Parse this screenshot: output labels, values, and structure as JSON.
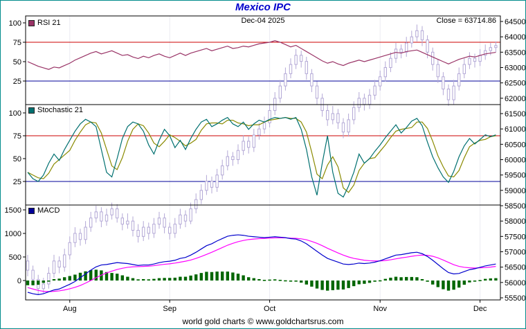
{
  "title": "Mexico IPC",
  "header": {
    "date_label": "Dec-04 2025",
    "close_label": "Close = 63714.86"
  },
  "footer": "world gold charts © www.goldchartsrus.com",
  "panels": [
    {
      "legend": "RSI 21",
      "swatch_color": "#993366"
    },
    {
      "legend": "Stochastic 21",
      "swatch_color": "#007070"
    },
    {
      "legend": "MACD",
      "swatch_color": "#000099"
    }
  ],
  "colors": {
    "title": "#0000cc",
    "frame_border": "#008b8b",
    "plot_border": "#000000",
    "month_grid": "#ebebf2",
    "candle": "#b3a8d6",
    "rsi_line": "#993366",
    "stoch_k_line": "#007070",
    "stoch_d_line": "#8a8a00",
    "macd_line": "#0000cc",
    "signal_line": "#ff00ff",
    "histogram": "#006600",
    "threshold_upper": "#cc0000",
    "threshold_lower": "#000099"
  },
  "chart_data": {
    "type": "candlestick_with_indicators",
    "title": "Mexico IPC",
    "annotation_date": "Dec-04 2025",
    "close_value": 63714.86,
    "x_axis": {
      "labels": [
        "Aug",
        "Sep",
        "Oct",
        "Nov",
        "Dec"
      ],
      "tick_indices": [
        8,
        27,
        46,
        67,
        86
      ]
    },
    "price_axis": {
      "min": 55500,
      "max": 64500,
      "step": 500,
      "ticks": [
        64500,
        64000,
        63500,
        63000,
        62500,
        62000,
        61500,
        61000,
        60500,
        60000,
        59500,
        59000,
        58500,
        58000,
        57500,
        57000,
        56500,
        56000,
        55500
      ]
    },
    "rsi_axis_ticks": [
      100,
      75,
      50,
      25
    ],
    "stoch_axis_ticks": [
      100,
      75,
      50,
      25
    ],
    "macd_axis_ticks": [
      1500,
      1000,
      500,
      0
    ],
    "thresholds": {
      "upper": 75,
      "lower": 25
    },
    "candles": [
      [
        56700,
        56900,
        56200,
        56400
      ],
      [
        56400,
        56550,
        55900,
        56100
      ],
      [
        56100,
        56250,
        55600,
        55800
      ],
      [
        55800,
        56150,
        55650,
        55950
      ],
      [
        55950,
        56500,
        55800,
        56300
      ],
      [
        56300,
        56900,
        56150,
        56700
      ],
      [
        56700,
        56850,
        56300,
        56500
      ],
      [
        56500,
        57100,
        56350,
        56900
      ],
      [
        56900,
        57500,
        56750,
        57300
      ],
      [
        57300,
        57800,
        57150,
        57600
      ],
      [
        57600,
        57750,
        57200,
        57400
      ],
      [
        57400,
        58000,
        57250,
        57800
      ],
      [
        57800,
        58300,
        57650,
        58100
      ],
      [
        58100,
        58500,
        57950,
        58300
      ],
      [
        58300,
        58450,
        57800,
        58000
      ],
      [
        58000,
        58400,
        57850,
        58200
      ],
      [
        58200,
        58600,
        58050,
        58400
      ],
      [
        58400,
        58550,
        57950,
        58100
      ],
      [
        58100,
        58250,
        57700,
        57900
      ],
      [
        57900,
        58250,
        57750,
        58000
      ],
      [
        58000,
        58150,
        57500,
        57700
      ],
      [
        57700,
        57900,
        57300,
        57500
      ],
      [
        57500,
        58000,
        57350,
        57800
      ],
      [
        57800,
        57950,
        57400,
        57600
      ],
      [
        57600,
        58100,
        57450,
        57900
      ],
      [
        57900,
        58300,
        57750,
        58100
      ],
      [
        58100,
        58250,
        57600,
        57800
      ],
      [
        57800,
        57950,
        57400,
        57600
      ],
      [
        57600,
        58100,
        57450,
        57900
      ],
      [
        57900,
        58400,
        57750,
        58200
      ],
      [
        58200,
        58350,
        57800,
        58000
      ],
      [
        58000,
        58600,
        57900,
        58400
      ],
      [
        58400,
        58900,
        58250,
        58700
      ],
      [
        58700,
        59200,
        58550,
        59000
      ],
      [
        59000,
        59500,
        58850,
        59300
      ],
      [
        59300,
        59450,
        58900,
        59100
      ],
      [
        59100,
        59700,
        58950,
        59500
      ],
      [
        59500,
        60000,
        59350,
        59800
      ],
      [
        59800,
        60300,
        59650,
        60100
      ],
      [
        60100,
        60250,
        59800,
        60000
      ],
      [
        60000,
        60500,
        59850,
        60300
      ],
      [
        60300,
        60800,
        60150,
        60600
      ],
      [
        60600,
        60750,
        60200,
        60400
      ],
      [
        60400,
        61000,
        60250,
        60800
      ],
      [
        60800,
        61200,
        60650,
        61000
      ],
      [
        61000,
        61400,
        60850,
        61200
      ],
      [
        61200,
        61800,
        61050,
        61600
      ],
      [
        61600,
        62200,
        61450,
        62000
      ],
      [
        62000,
        62600,
        61850,
        62400
      ],
      [
        62400,
        63000,
        62250,
        62800
      ],
      [
        62800,
        63300,
        62650,
        63100
      ],
      [
        63100,
        63600,
        62950,
        63400
      ],
      [
        63400,
        63550,
        63000,
        63200
      ],
      [
        63200,
        63350,
        62600,
        62800
      ],
      [
        62800,
        62950,
        62200,
        62400
      ],
      [
        62400,
        62550,
        61800,
        62000
      ],
      [
        62000,
        62150,
        61400,
        61600
      ],
      [
        61600,
        61800,
        61100,
        61300
      ],
      [
        61300,
        61750,
        61150,
        61500
      ],
      [
        61500,
        61650,
        61000,
        61200
      ],
      [
        61200,
        61350,
        60700,
        60900
      ],
      [
        60900,
        61500,
        60750,
        61300
      ],
      [
        61300,
        61900,
        61150,
        61700
      ],
      [
        61700,
        62200,
        61550,
        62000
      ],
      [
        62000,
        62150,
        61600,
        61800
      ],
      [
        61800,
        62300,
        61650,
        62100
      ],
      [
        62100,
        62600,
        61950,
        62400
      ],
      [
        62400,
        62900,
        62250,
        62700
      ],
      [
        62700,
        63200,
        62550,
        63000
      ],
      [
        63000,
        63500,
        62850,
        63300
      ],
      [
        63300,
        63800,
        63150,
        63600
      ],
      [
        63600,
        63750,
        63300,
        63500
      ],
      [
        63500,
        64000,
        63350,
        63800
      ],
      [
        63800,
        64200,
        63650,
        64000
      ],
      [
        64000,
        64400,
        63850,
        64200
      ],
      [
        64200,
        64350,
        63700,
        63900
      ],
      [
        63900,
        64050,
        63300,
        63500
      ],
      [
        63500,
        63650,
        62900,
        63100
      ],
      [
        63100,
        63250,
        62500,
        62700
      ],
      [
        62700,
        62850,
        62100,
        62300
      ],
      [
        62300,
        62450,
        61750,
        61950
      ],
      [
        61950,
        62600,
        61800,
        62400
      ],
      [
        62400,
        63000,
        62250,
        62800
      ],
      [
        62800,
        63300,
        62650,
        63100
      ],
      [
        63100,
        63500,
        62950,
        63300
      ],
      [
        63300,
        63450,
        63000,
        63200
      ],
      [
        63200,
        63600,
        63050,
        63400
      ],
      [
        63400,
        63750,
        63250,
        63550
      ],
      [
        63550,
        63800,
        63400,
        63650
      ],
      [
        63650,
        63850,
        63500,
        63714.86
      ]
    ],
    "rsi": [
      50,
      47,
      44,
      42,
      40,
      43,
      42,
      45,
      48,
      52,
      55,
      58,
      61,
      63,
      60,
      62,
      64,
      61,
      58,
      59,
      56,
      54,
      57,
      55,
      58,
      60,
      57,
      55,
      58,
      61,
      58,
      61,
      63,
      65,
      67,
      64,
      66,
      68,
      70,
      67,
      68,
      70,
      69,
      71,
      73,
      74,
      75,
      77,
      75,
      72,
      69,
      71,
      67,
      63,
      59,
      55,
      51,
      48,
      50,
      47,
      45,
      48,
      50,
      52,
      50,
      52,
      54,
      56,
      58,
      60,
      62,
      61,
      63,
      64,
      65,
      62,
      59,
      56,
      53,
      50,
      47,
      50,
      53,
      55,
      57,
      56,
      58,
      60,
      61,
      62
    ],
    "stoch_k": [
      35,
      28,
      25,
      32,
      45,
      55,
      48,
      60,
      70,
      80,
      88,
      93,
      90,
      85,
      60,
      35,
      30,
      50,
      72,
      85,
      90,
      88,
      80,
      65,
      55,
      70,
      82,
      75,
      62,
      70,
      60,
      72,
      82,
      90,
      93,
      85,
      88,
      92,
      95,
      88,
      85,
      90,
      82,
      88,
      92,
      90,
      93,
      95,
      94,
      95,
      93,
      95,
      82,
      60,
      30,
      10,
      45,
      75,
      35,
      12,
      8,
      20,
      35,
      55,
      45,
      50,
      58,
      65,
      73,
      80,
      87,
      78,
      84,
      91,
      94,
      86,
      68,
      52,
      40,
      30,
      24,
      36,
      52,
      64,
      72,
      66,
      71,
      76,
      74,
      76
    ],
    "stoch_d": [
      35,
      32,
      29,
      28,
      34,
      44,
      49,
      54,
      59,
      70,
      79,
      87,
      90,
      89,
      78,
      60,
      42,
      38,
      51,
      69,
      82,
      88,
      86,
      78,
      67,
      63,
      69,
      76,
      73,
      69,
      64,
      67,
      71,
      81,
      88,
      89,
      89,
      88,
      92,
      92,
      89,
      88,
      86,
      87,
      87,
      90,
      92,
      93,
      94,
      95,
      94,
      94,
      90,
      79,
      57,
      33,
      28,
      43,
      52,
      41,
      18,
      13,
      21,
      37,
      45,
      50,
      51,
      58,
      65,
      73,
      80,
      82,
      83,
      84,
      90,
      90,
      83,
      69,
      53,
      41,
      31,
      30,
      37,
      51,
      63,
      67,
      70,
      71,
      74,
      75
    ],
    "macd": [
      -250,
      -280,
      -300,
      -280,
      -240,
      -200,
      -180,
      -130,
      -80,
      -20,
      60,
      140,
      220,
      290,
      330,
      340,
      360,
      380,
      370,
      360,
      340,
      320,
      330,
      330,
      350,
      380,
      400,
      410,
      430,
      470,
      490,
      540,
      600,
      670,
      740,
      780,
      840,
      890,
      940,
      960,
      970,
      960,
      940,
      930,
      920,
      910,
      920,
      930,
      920,
      910,
      890,
      880,
      840,
      780,
      700,
      620,
      540,
      470,
      430,
      390,
      350,
      340,
      350,
      370,
      360,
      370,
      390,
      420,
      460,
      500,
      540,
      550,
      570,
      590,
      600,
      570,
      510,
      430,
      340,
      250,
      170,
      140,
      150,
      190,
      230,
      250,
      280,
      310,
      330,
      350
    ],
    "macd_signal": [
      -150,
      -180,
      -210,
      -230,
      -235,
      -230,
      -220,
      -200,
      -175,
      -145,
      -105,
      -55,
      0,
      60,
      115,
      160,
      200,
      235,
      260,
      280,
      290,
      295,
      300,
      305,
      315,
      330,
      345,
      355,
      370,
      390,
      410,
      435,
      470,
      510,
      555,
      600,
      650,
      700,
      750,
      790,
      825,
      850,
      870,
      880,
      890,
      895,
      900,
      905,
      905,
      905,
      900,
      895,
      885,
      865,
      830,
      790,
      740,
      685,
      635,
      585,
      540,
      500,
      470,
      450,
      430,
      420,
      415,
      415,
      425,
      440,
      460,
      480,
      495,
      515,
      530,
      540,
      535,
      515,
      480,
      435,
      385,
      335,
      300,
      280,
      270,
      265,
      270,
      275,
      285,
      300
    ],
    "macd_hist": [
      -100,
      -100,
      -90,
      -50,
      -5,
      30,
      40,
      70,
      95,
      125,
      165,
      195,
      220,
      230,
      215,
      180,
      160,
      145,
      110,
      80,
      50,
      25,
      30,
      25,
      35,
      50,
      55,
      55,
      60,
      80,
      80,
      105,
      130,
      160,
      185,
      180,
      190,
      190,
      190,
      170,
      145,
      110,
      70,
      50,
      30,
      15,
      20,
      25,
      15,
      5,
      -10,
      -15,
      -45,
      -85,
      -130,
      -170,
      -200,
      -215,
      -205,
      -195,
      -190,
      -160,
      -120,
      -80,
      -70,
      -50,
      -25,
      5,
      35,
      60,
      80,
      70,
      75,
      75,
      70,
      30,
      -25,
      -85,
      -140,
      -185,
      -215,
      -195,
      -150,
      -90,
      -40,
      -15,
      10,
      35,
      45,
      50
    ]
  }
}
